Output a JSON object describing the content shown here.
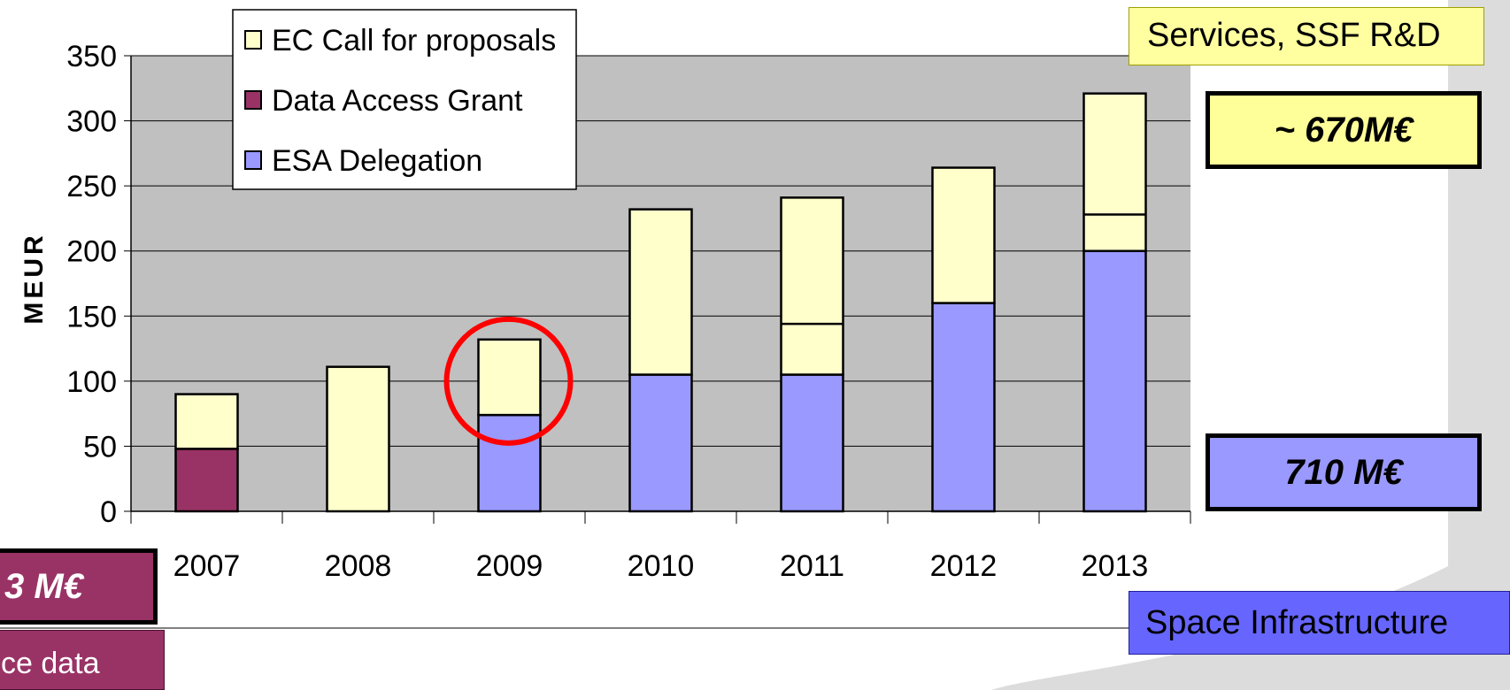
{
  "chart_data": {
    "type": "bar",
    "stacked": true,
    "categories": [
      "2007",
      "2008",
      "2009",
      "2010",
      "2011",
      "2012",
      "2013"
    ],
    "series": [
      {
        "name": "ESA Delegation",
        "color": "#9999ff",
        "values": [
          0,
          0,
          74,
          105,
          105,
          160,
          200
        ]
      },
      {
        "name": "Data Access Grant",
        "color": "#993366",
        "values": [
          48,
          0,
          0,
          0,
          0,
          0,
          0
        ]
      },
      {
        "name": "EC Call for proposals",
        "color": "#ffffcc",
        "values": [
          42,
          111,
          58,
          127,
          136,
          104,
          121
        ]
      }
    ],
    "segment_lines": [
      {
        "category": "2011",
        "value": 144
      },
      {
        "category": "2013",
        "value": 228
      }
    ],
    "legend_order": [
      "EC Call for proposals",
      "Data Access Grant",
      "ESA Delegation"
    ],
    "legend_position": "top-left",
    "ylabel": "MEUR",
    "ylim": [
      0,
      350
    ],
    "yticks": [
      "0",
      "50",
      "100",
      "150",
      "200",
      "250",
      "300",
      "350"
    ],
    "grid": true,
    "plot_background": "#c0c0c0",
    "highlight": {
      "category": "2009",
      "color": "#ff0000",
      "shape": "circle"
    }
  },
  "annotations": {
    "services_label": "Services, SSF R&D",
    "services_total": "~ 670M€",
    "space_total": "710 M€",
    "space_label": "Space Infrastructure",
    "access_total_partial": "3 M€",
    "access_label_partial": "ce data"
  },
  "colors": {
    "services_box": "#ffffa0",
    "services_total_box": "#ffff99",
    "space_total_box": "#9999ff",
    "space_box": "#6666ff",
    "access_box": "#993366"
  }
}
